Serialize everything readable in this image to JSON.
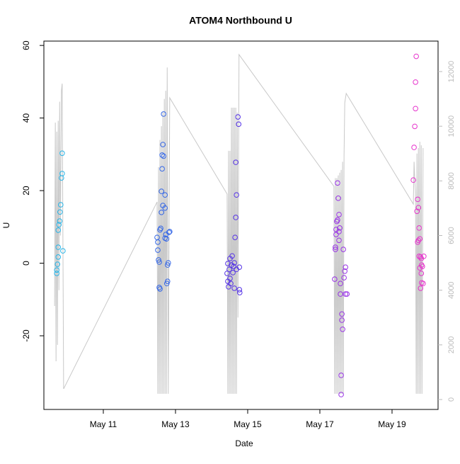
{
  "chart_data": {
    "type": "scatter",
    "title": "ATOM4 Northbound U",
    "x_label": "Date",
    "y_label": "U",
    "xlim": [
      9.353,
      20.275
    ],
    "xticks": [
      {
        "value": 11,
        "label": "May 11"
      },
      {
        "value": 13,
        "label": "May 13"
      },
      {
        "value": 15,
        "label": "May 15"
      },
      {
        "value": 17,
        "label": "May 17"
      },
      {
        "value": 19,
        "label": "May 19"
      }
    ],
    "ylim": [
      -40.3,
      61.2
    ],
    "yticks": [
      -20,
      0,
      20,
      40,
      60
    ],
    "y2lim": [
      -363,
      13115
    ],
    "y2ticks": [
      0,
      2000,
      4000,
      6000,
      8000,
      10000,
      12000
    ],
    "y2_color": "#bbbbbb",
    "series": [
      {
        "type": "line",
        "axis": "y2",
        "color": "#c8c8c8",
        "x": [
          9.65,
          9.67,
          9.69,
          9.71,
          9.73,
          9.75,
          9.77,
          9.79,
          9.81,
          9.84,
          9.86,
          9.9,
          12.49,
          12.51,
          12.53,
          12.55,
          12.57,
          12.59,
          12.61,
          12.63,
          12.65,
          12.67,
          12.69,
          12.71,
          12.73,
          12.75,
          12.77,
          12.8,
          12.84,
          14.43,
          14.45,
          14.47,
          14.49,
          14.51,
          14.53,
          14.55,
          14.57,
          14.59,
          14.61,
          14.63,
          14.65,
          14.67,
          14.69,
          14.71,
          14.73,
          14.76,
          17.39,
          17.41,
          17.43,
          17.45,
          17.47,
          17.49,
          17.51,
          17.53,
          17.55,
          17.57,
          17.59,
          17.61,
          17.63,
          17.65,
          17.67,
          17.69,
          17.73,
          19.59,
          19.61,
          19.63,
          19.65,
          19.67,
          19.69,
          19.71,
          19.73,
          19.75,
          19.77,
          19.79,
          19.81,
          19.83,
          19.86
        ],
        "values": [
          3420,
          10130,
          1400,
          9800,
          2000,
          10200,
          4000,
          10900,
          6000,
          11300,
          11560,
          390,
          7230,
          210,
          8500,
          210,
          9500,
          210,
          10000,
          210,
          10500,
          210,
          11000,
          210,
          11300,
          210,
          12150,
          210,
          11040,
          7520,
          210,
          9100,
          210,
          9100,
          210,
          10680,
          210,
          10680,
          210,
          10680,
          210,
          10680,
          210,
          10500,
          3000,
          12620,
          7800,
          210,
          8100,
          210,
          8100,
          210,
          8200,
          210,
          8300,
          210,
          8400,
          210,
          8700,
          210,
          8920,
          10860,
          11200,
          7150,
          8700,
          8000,
          7600,
          210,
          9000,
          210,
          9200,
          210,
          9430,
          210,
          9300,
          210,
          9200
        ]
      },
      {
        "color": "#29b5e8",
        "x": [
          9.71,
          9.71,
          9.73,
          9.75,
          9.75,
          9.75,
          9.77,
          9.79,
          9.8,
          9.82,
          9.84,
          9.86,
          9.86,
          9.88
        ],
        "values": [
          -2.8,
          -1.9,
          -0.3,
          1.7,
          4.4,
          9.1,
          10.6,
          11.6,
          14.1,
          16.1,
          23.5,
          24.7,
          30.3,
          3.4
        ]
      },
      {
        "color": "#3366e6",
        "x": [
          12.49,
          12.51,
          12.51,
          12.53,
          12.55,
          12.55,
          12.57,
          12.57,
          12.59,
          12.61,
          12.61,
          12.63,
          12.63,
          12.65,
          12.65,
          12.67,
          12.67,
          12.71,
          12.71,
          12.71,
          12.73,
          12.75,
          12.76,
          12.78,
          12.78,
          12.8,
          12.82,
          12.84
        ],
        "values": [
          7.1,
          5.8,
          3.6,
          0.9,
          0.3,
          -6.7,
          -7.1,
          9.2,
          9.6,
          14.0,
          19.8,
          29.8,
          26.0,
          32.7,
          15.9,
          41.1,
          29.5,
          15.2,
          18.8,
          6.9,
          7.9,
          6.7,
          -5.6,
          -0.5,
          -5.0,
          0.1,
          8.5,
          8.7
        ]
      },
      {
        "color": "#5533e6",
        "x": [
          14.43,
          14.45,
          14.45,
          14.47,
          14.49,
          14.51,
          14.51,
          14.53,
          14.55,
          14.57,
          14.59,
          14.61,
          14.63,
          14.63,
          14.65,
          14.67,
          14.67,
          14.69,
          14.69,
          14.73,
          14.75,
          14.77,
          14.78,
          14.77
        ],
        "values": [
          -2.8,
          -5.0,
          -0.1,
          -6.5,
          -1.7,
          -4.2,
          1.3,
          -5.6,
          -0.5,
          2.0,
          -2.6,
          -0.9,
          -6.9,
          0.1,
          7.1,
          12.6,
          27.8,
          18.8,
          -1.7,
          40.3,
          38.3,
          -7.3,
          -8.1,
          -1.1
        ]
      },
      {
        "color": "#9933e6",
        "x": [
          17.41,
          17.43,
          17.43,
          17.45,
          17.45,
          17.47,
          17.49,
          17.49,
          17.51,
          17.53,
          17.53,
          17.55,
          17.57,
          17.57,
          17.59,
          17.59,
          17.61,
          17.61,
          17.63,
          17.65,
          17.67,
          17.69,
          17.71,
          17.71,
          17.75,
          17.53
        ],
        "values": [
          -4.4,
          3.8,
          4.4,
          7.9,
          9.3,
          11.5,
          11.9,
          22.1,
          17.9,
          13.4,
          8.7,
          9.7,
          -5.6,
          -8.5,
          -36.2,
          -30.9,
          -14.0,
          -15.7,
          -18.2,
          3.8,
          -4.0,
          -2.2,
          -1.1,
          -8.5,
          -8.5,
          6.3
        ]
      },
      {
        "color": "#e633cc",
        "x": [
          19.59,
          19.61,
          19.63,
          19.65,
          19.65,
          19.67,
          19.69,
          19.71,
          19.73,
          19.75,
          19.71,
          19.73,
          19.77,
          19.75,
          19.79,
          19.81,
          19.82,
          19.84,
          19.77,
          19.81,
          19.82,
          19.86,
          19.79,
          19.88
        ],
        "values": [
          22.9,
          31.9,
          37.7,
          42.6,
          49.9,
          57.0,
          14.3,
          17.6,
          15.3,
          9.7,
          5.8,
          6.3,
          6.7,
          1.9,
          1.7,
          1.3,
          -0.5,
          -0.9,
          -1.3,
          -2.8,
          -5.4,
          -5.6,
          -6.9,
          1.9
        ]
      }
    ]
  }
}
